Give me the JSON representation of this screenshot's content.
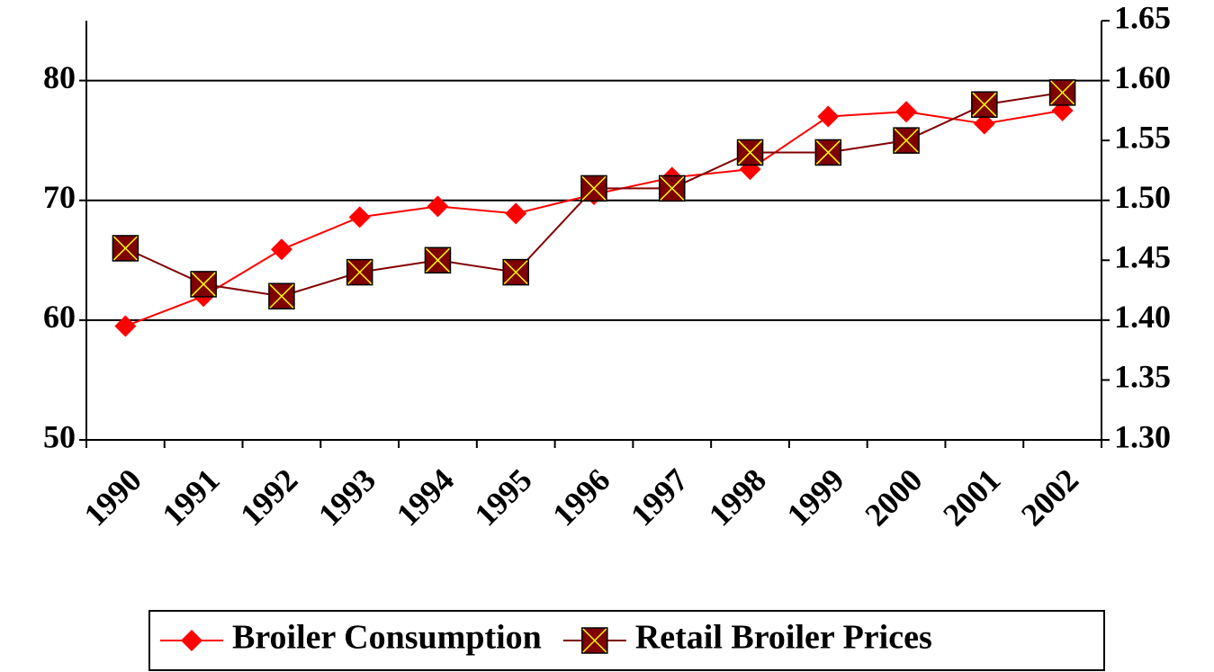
{
  "chart_data": {
    "type": "line",
    "categories": [
      "1990",
      "1991",
      "1992",
      "1993",
      "1994",
      "1995",
      "1996",
      "1997",
      "1998",
      "1999",
      "2000",
      "2001",
      "2002"
    ],
    "series": [
      {
        "name": "Broiler Consumption",
        "color": "#ff0000",
        "values": [
          59.5,
          62,
          65.9,
          68.6,
          69.5,
          68.9,
          70.5,
          71.9,
          72.6,
          77,
          77.4,
          76.4,
          77.5
        ]
      },
      {
        "name": "Retail Broiler Prices",
        "color": "#800000",
        "axis": "y2",
        "values": [
          1.46,
          1.43,
          1.42,
          1.44,
          1.45,
          1.44,
          1.51,
          1.51,
          1.54,
          1.54,
          1.55,
          1.58,
          1.59
        ]
      }
    ],
    "ylim": [
      50,
      85
    ],
    "yticks": [
      50,
      60,
      70,
      80
    ],
    "y2lim": [
      1.3,
      1.65
    ],
    "y2ticks": [
      {
        "value": 1.3,
        "label": "1.30"
      },
      {
        "value": 1.35,
        "label": "1.35"
      },
      {
        "value": 1.4,
        "label": "1.40"
      },
      {
        "value": 1.45,
        "label": "1.45"
      },
      {
        "value": 1.5,
        "label": "1.50"
      },
      {
        "value": 1.55,
        "label": "1.55"
      },
      {
        "value": 1.6,
        "label": "1.60"
      },
      {
        "value": 1.65,
        "label": "1.65"
      }
    ],
    "grid": true,
    "legend": "bottom"
  }
}
